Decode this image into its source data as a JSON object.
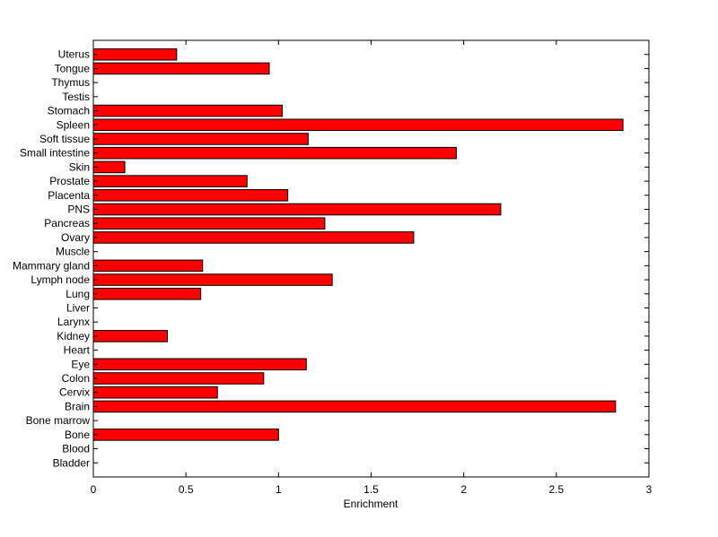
{
  "chart_data": {
    "type": "bar",
    "orientation": "horizontal",
    "title": "",
    "xlabel": "Enrichment",
    "ylabel": "",
    "xlim": [
      0,
      3
    ],
    "xticks": [
      0,
      0.5,
      1,
      1.5,
      2,
      2.5,
      3
    ],
    "xtick_labels": [
      "0",
      "0.5",
      "1",
      "1.5",
      "2",
      "2.5",
      "3"
    ],
    "grid": false,
    "legend": "none",
    "bar_color": "#ff0000",
    "bar_edge_color": "#000000",
    "categories": [
      "Bladder",
      "Blood",
      "Bone",
      "Bone marrow",
      "Brain",
      "Cervix",
      "Colon",
      "Eye",
      "Heart",
      "Kidney",
      "Larynx",
      "Liver",
      "Lung",
      "Lymph node",
      "Mammary gland",
      "Muscle",
      "Ovary",
      "Pancreas",
      "PNS",
      "Placenta",
      "Prostate",
      "Skin",
      "Small intestine",
      "Soft tissue",
      "Spleen",
      "Stomach",
      "Testis",
      "Thymus",
      "Tongue",
      "Uterus"
    ],
    "values": [
      0,
      0,
      1.0,
      0,
      2.82,
      0.67,
      0.92,
      1.15,
      0,
      0.4,
      0,
      0,
      0.58,
      1.29,
      0.59,
      0,
      1.73,
      1.25,
      2.2,
      1.05,
      0.83,
      0.17,
      1.96,
      1.16,
      2.86,
      1.02,
      0,
      0,
      0.95,
      0.45
    ]
  }
}
